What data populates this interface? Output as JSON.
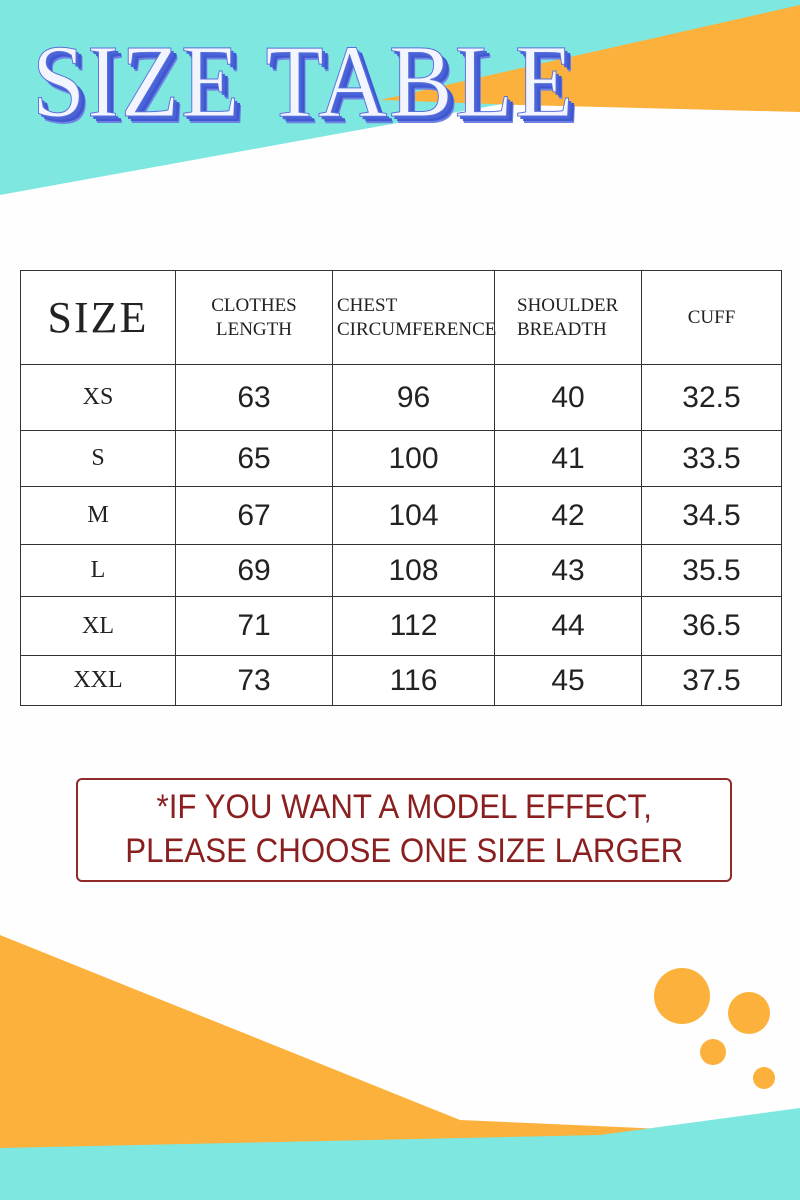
{
  "title": "SIZE TABLE",
  "colors": {
    "teal": "#7ee8e0",
    "orange": "#fbb13c",
    "title_shadow": "#3f58d0",
    "note": "#8a1f1f"
  },
  "table": {
    "headers": [
      {
        "line1": "SIZE",
        "line2": ""
      },
      {
        "line1": "CLOTHES",
        "line2": "LENGTH"
      },
      {
        "line1": "CHEST",
        "line2": "CIRCUMFERENCE"
      },
      {
        "line1": "SHOULDER",
        "line2": "BREADTH"
      },
      {
        "line1": "CUFF",
        "line2": ""
      }
    ],
    "rows": [
      [
        "XS",
        "63",
        "96",
        "40",
        "32.5"
      ],
      [
        "S",
        "65",
        "100",
        "41",
        "33.5"
      ],
      [
        "M",
        "67",
        "104",
        "42",
        "34.5"
      ],
      [
        "L",
        "69",
        "108",
        "43",
        "35.5"
      ],
      [
        "XL",
        "71",
        "112",
        "44",
        "36.5"
      ],
      [
        "XXL",
        "73",
        "116",
        "45",
        "37.5"
      ]
    ]
  },
  "note": {
    "line1": "*IF YOU WANT A MODEL EFFECT,",
    "line2": "PLEASE CHOOSE ONE SIZE LARGER"
  }
}
